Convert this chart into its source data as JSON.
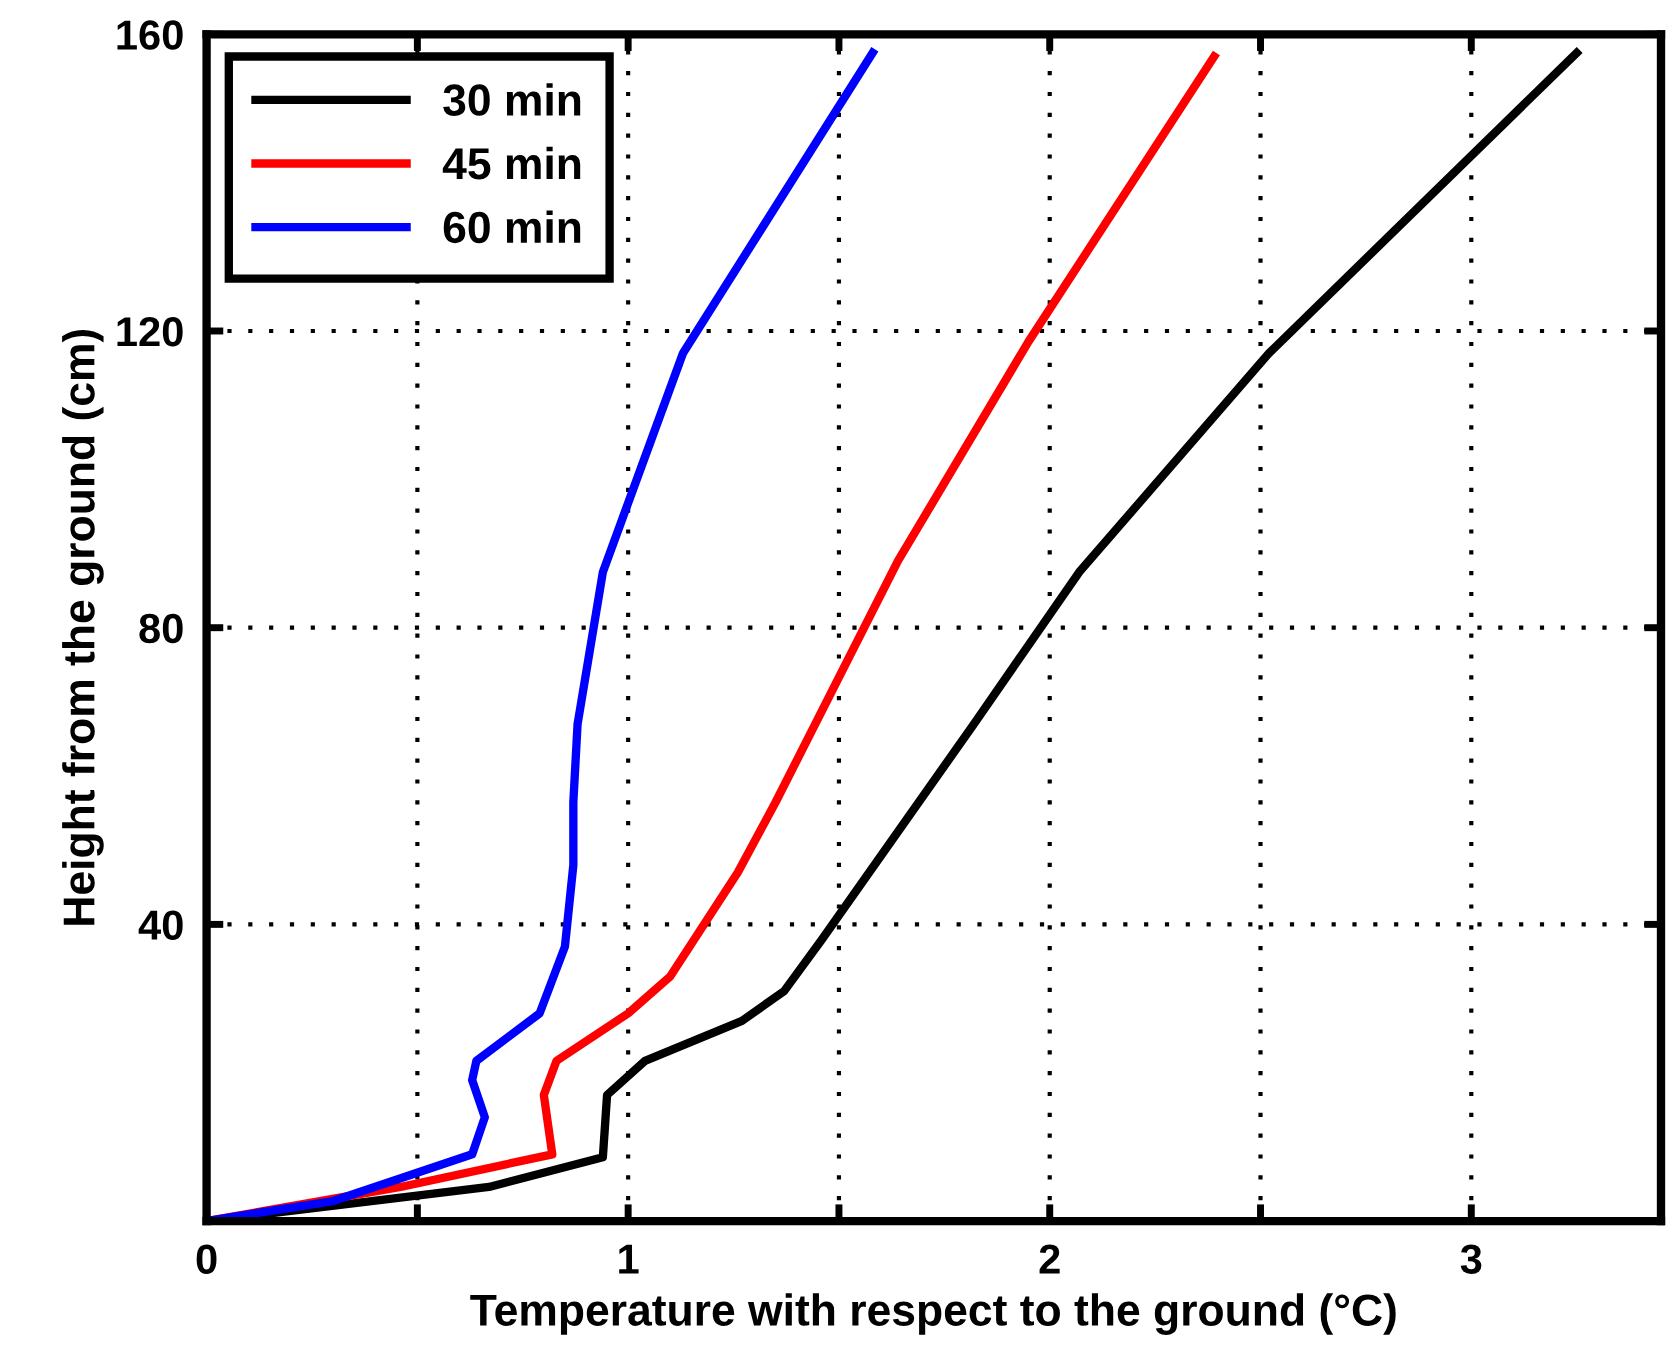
{
  "chart_data": {
    "type": "line",
    "xlabel": "Temperature with respect to the ground (°C)",
    "ylabel": "Height from the ground (cm)",
    "xlim": [
      0,
      3.45
    ],
    "ylim": [
      0,
      160
    ],
    "xticks": [
      0,
      {
        "value": 0.5,
        "label": null
      },
      1,
      {
        "value": 1.5,
        "label": null
      },
      2,
      {
        "value": 2.5,
        "label": null
      },
      3
    ],
    "yticks": [
      40,
      80,
      120,
      160
    ],
    "grid": true,
    "legend": "top left",
    "line_style": "solid",
    "marker": "none",
    "series": [
      {
        "name": "30 min",
        "color": "#000000",
        "x": [
          0,
          0.67,
          0.94,
          0.95,
          1.04,
          1.27,
          1.37,
          1.46,
          1.82,
          2.07,
          2.52,
          3.25
        ],
        "values": [
          0,
          4.6,
          8.6,
          17,
          21.6,
          27,
          31,
          38,
          67,
          87.5,
          117,
          157.5
        ]
      },
      {
        "name": "45 min",
        "color": "#ff0000",
        "x": [
          0,
          0.46,
          0.82,
          0.8,
          0.83,
          1.0,
          1.1,
          1.26,
          1.35,
          1.64,
          1.95,
          2.39
        ],
        "values": [
          0,
          4.6,
          9,
          17,
          21.6,
          28,
          33,
          47,
          56.5,
          89,
          118.6,
          157
        ]
      },
      {
        "name": "60 min",
        "color": "#0000ff",
        "x": [
          0,
          0.3,
          0.63,
          0.66,
          0.63,
          0.64,
          0.79,
          0.85,
          0.87,
          0.87,
          0.88,
          0.94,
          1.13,
          1.58
        ],
        "values": [
          0,
          2.7,
          9,
          14,
          19,
          21.6,
          28,
          37,
          48,
          56.5,
          67,
          87.5,
          117,
          157.5
        ]
      }
    ]
  }
}
